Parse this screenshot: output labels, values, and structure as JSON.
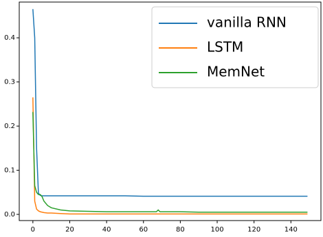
{
  "chart_data": {
    "type": "line",
    "x": [
      0,
      1,
      2,
      3,
      4,
      5,
      6,
      8,
      10,
      15,
      20,
      30,
      40,
      50,
      60,
      67,
      68,
      69,
      70,
      80,
      90,
      100,
      110,
      120,
      130,
      140,
      149
    ],
    "series": [
      {
        "name": "vanilla RNN",
        "color": "#1f77b4",
        "values": [
          0.465,
          0.4,
          0.15,
          0.048,
          0.043,
          0.042,
          0.042,
          0.042,
          0.042,
          0.042,
          0.042,
          0.042,
          0.042,
          0.042,
          0.041,
          0.041,
          0.041,
          0.041,
          0.041,
          0.041,
          0.041,
          0.041,
          0.041,
          0.041,
          0.041,
          0.041,
          0.041
        ]
      },
      {
        "name": "LSTM",
        "color": "#ff7f0e",
        "values": [
          0.265,
          0.03,
          0.012,
          0.008,
          0.006,
          0.005,
          0.004,
          0.003,
          0.003,
          0.002,
          0.001,
          0.001,
          0.001,
          0.001,
          0.001,
          0.001,
          0.001,
          0.001,
          0.001,
          0.001,
          0.001,
          0.001,
          0.001,
          0.001,
          0.001,
          0.001,
          0.001
        ]
      },
      {
        "name": "MemNet",
        "color": "#2ca02c",
        "values": [
          0.232,
          0.065,
          0.05,
          0.045,
          0.045,
          0.04,
          0.03,
          0.02,
          0.015,
          0.01,
          0.008,
          0.007,
          0.006,
          0.006,
          0.006,
          0.006,
          0.01,
          0.006,
          0.006,
          0.006,
          0.005,
          0.005,
          0.005,
          0.005,
          0.005,
          0.005,
          0.005
        ]
      }
    ],
    "xlim": [
      -7.4,
      156.3
    ],
    "ylim": [
      -0.014,
      0.481
    ],
    "xticks": [
      0,
      20,
      40,
      60,
      80,
      100,
      120,
      140
    ],
    "yticks": [
      {
        "value": 0.0,
        "label": "0.0"
      },
      0.1,
      0.2,
      0.3,
      0.4
    ],
    "legend": "upper right"
  }
}
